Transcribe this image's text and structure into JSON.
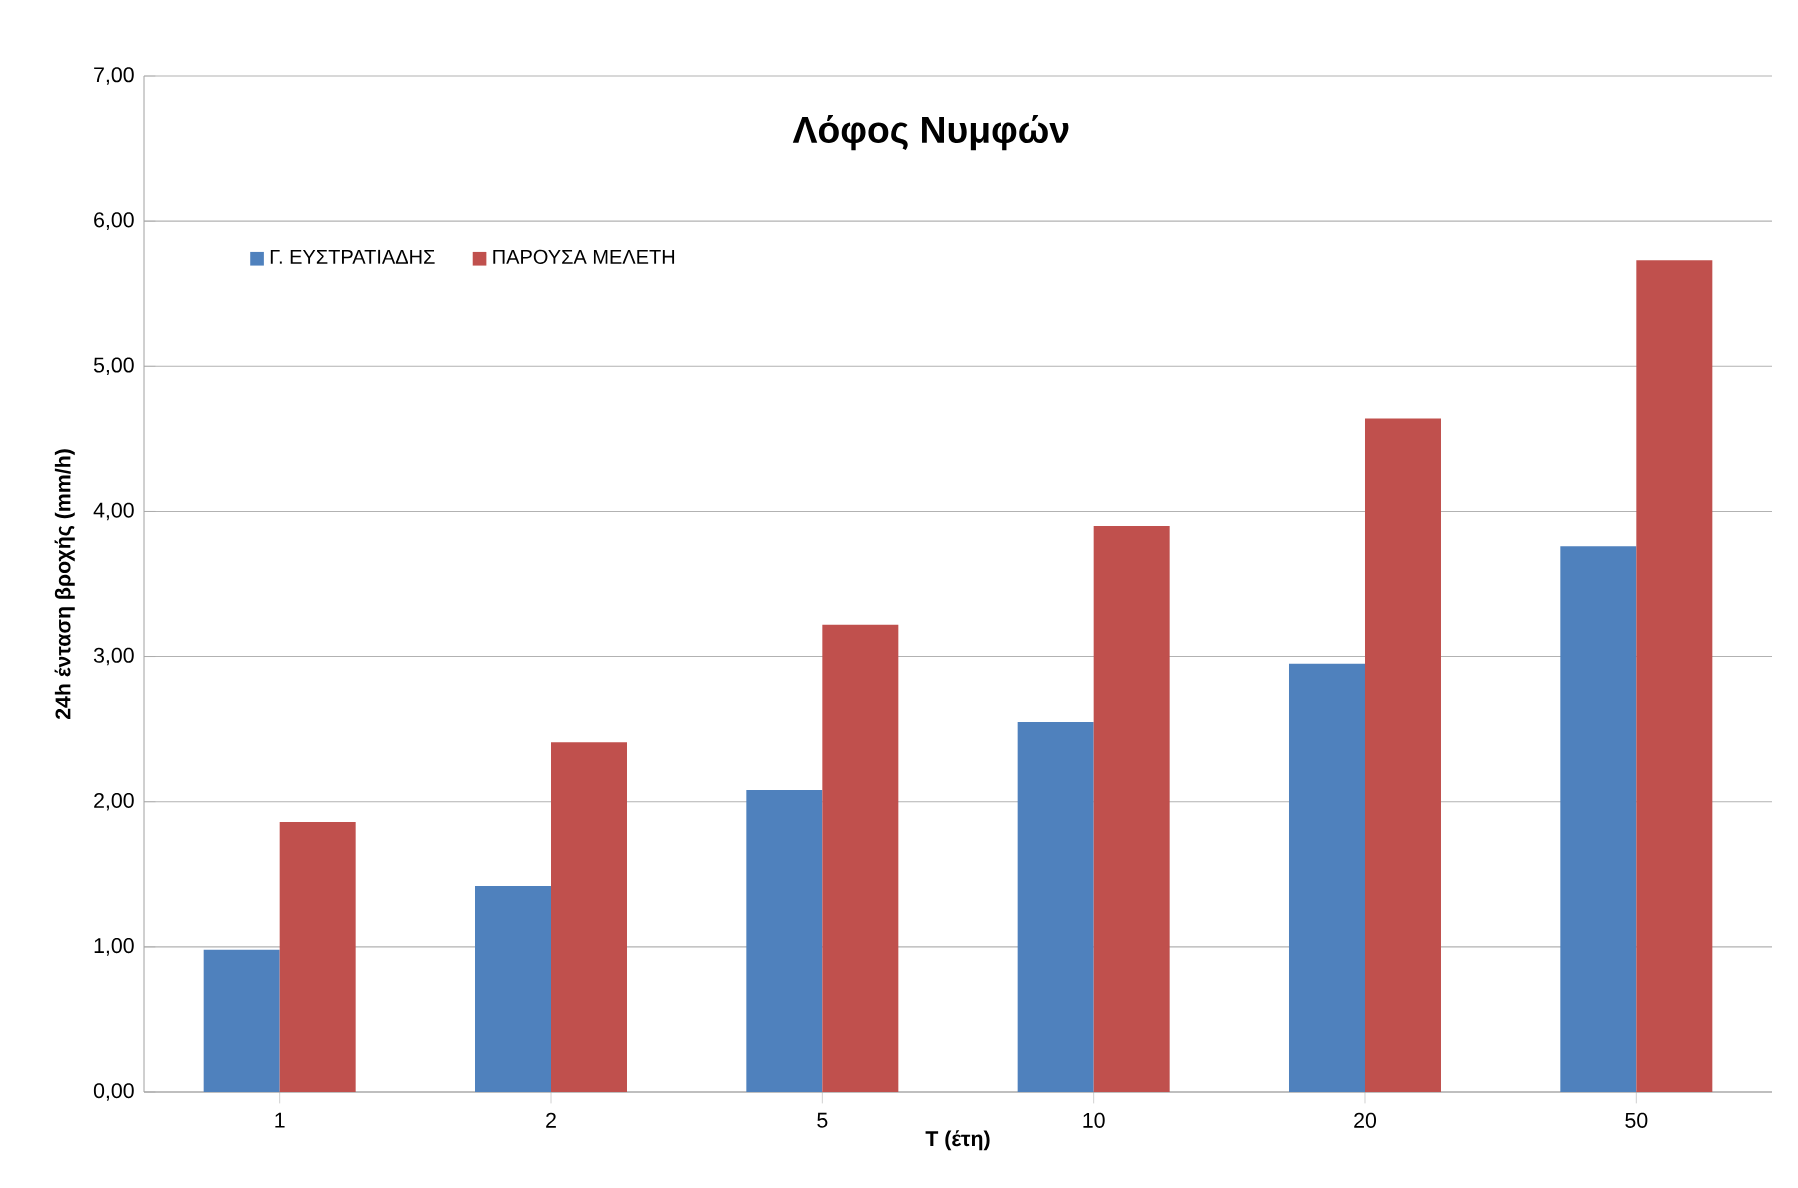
{
  "chart_data": {
    "type": "bar",
    "title": "Λόφος Νυμφών",
    "xlabel": "T (έτη)",
    "ylabel": "24h ένταση βροχής (mm/h)",
    "categories": [
      "1",
      "2",
      "5",
      "10",
      "20",
      "50"
    ],
    "series": [
      {
        "name": "Γ. ΕΥΣΤΡΑΤΙΑΔΗΣ",
        "color": "#4f81bd",
        "values": [
          0.98,
          1.42,
          2.08,
          2.55,
          2.95,
          3.76
        ]
      },
      {
        "name": "ΠΑΡΟΥΣΑ ΜΕΛΕΤΗ",
        "color": "#c0504d",
        "values": [
          1.86,
          2.41,
          3.22,
          3.9,
          4.64,
          5.73
        ]
      }
    ],
    "ylim": [
      0,
      7
    ],
    "yticks": [
      {
        "value": 0,
        "label": "0,00"
      },
      {
        "value": 1,
        "label": "1,00"
      },
      {
        "value": 2,
        "label": "2,00"
      },
      {
        "value": 3,
        "label": "3,00"
      },
      {
        "value": 4,
        "label": "4,00"
      },
      {
        "value": 5,
        "label": "5,00"
      },
      {
        "value": 6,
        "label": "6,00"
      },
      {
        "value": 7,
        "label": "7,00"
      }
    ],
    "grid": "y",
    "legend": "top left"
  }
}
